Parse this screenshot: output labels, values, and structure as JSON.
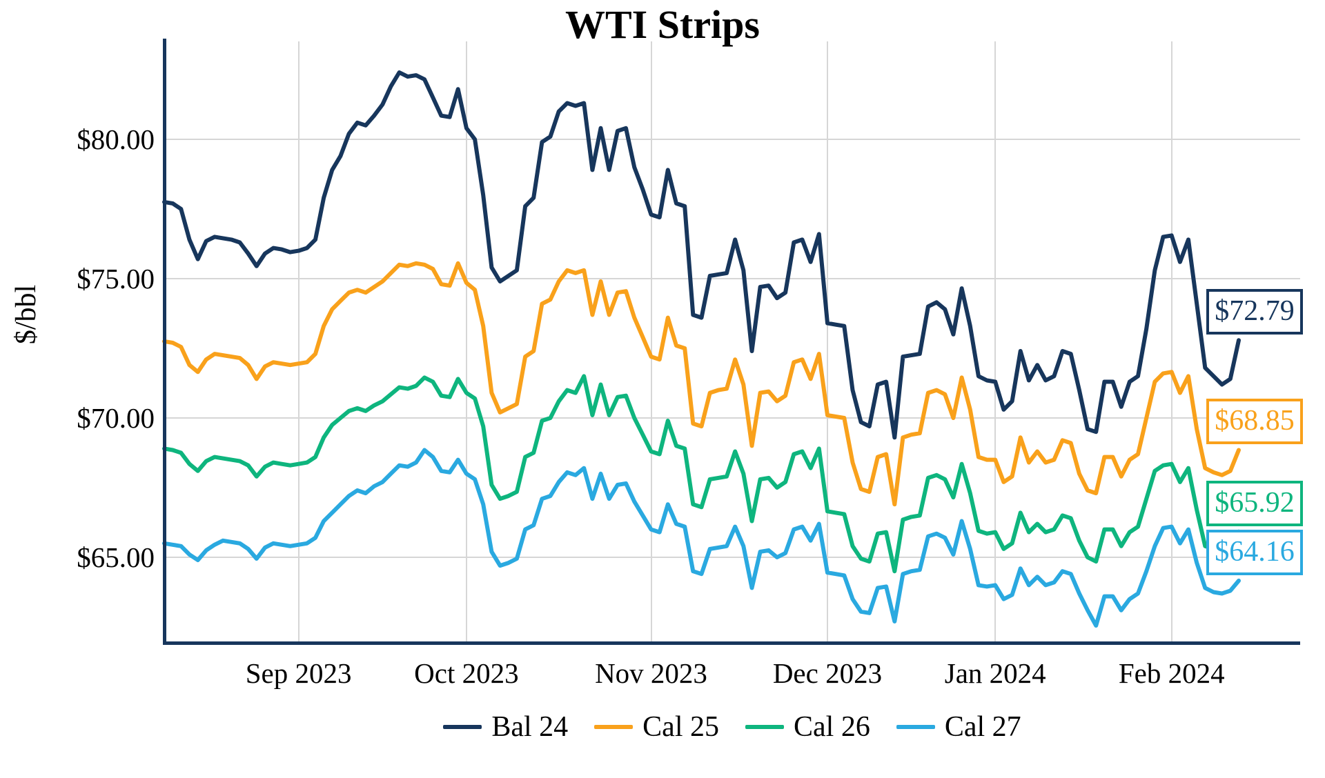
{
  "title": "WTI Strips",
  "y_axis": {
    "label": "$/bbl",
    "ticks": [
      {
        "label": "$80.00",
        "value": 80
      },
      {
        "label": "$75.00",
        "value": 75
      },
      {
        "label": "$70.00",
        "value": 70
      },
      {
        "label": "$65.00",
        "value": 65
      }
    ]
  },
  "x_axis": {
    "ticks": [
      {
        "label": "Sep 2023",
        "index": 16
      },
      {
        "label": "Oct 2023",
        "index": 36
      },
      {
        "label": "Nov 2023",
        "index": 58
      },
      {
        "label": "Dec 2023",
        "index": 79
      },
      {
        "label": "Jan 2024",
        "index": 99
      },
      {
        "label": "Feb 2024",
        "index": 120
      }
    ]
  },
  "chart_data": {
    "type": "line",
    "title": "WTI Strips",
    "xlabel": "",
    "ylabel": "$/bbl",
    "ylim": [
      61.9,
      83.5
    ],
    "x_range": "daily strip prices, Aug 10 2023 - Feb 13 2024",
    "grid": true,
    "legend_position": "bottom",
    "series": [
      {
        "name": "Bal 24",
        "color": "#17365c",
        "end_label": "$72.79",
        "end_value": 72.79,
        "values": [
          77.75,
          77.7,
          77.5,
          76.4,
          75.7,
          76.35,
          76.5,
          76.45,
          76.4,
          76.3,
          75.9,
          75.45,
          75.9,
          76.1,
          76.05,
          75.95,
          76.0,
          76.1,
          76.4,
          77.9,
          78.9,
          79.4,
          80.2,
          80.6,
          80.5,
          80.85,
          81.25,
          81.9,
          82.4,
          82.25,
          82.3,
          82.15,
          81.5,
          80.85,
          80.8,
          81.8,
          80.4,
          80.0,
          78.0,
          75.4,
          74.9,
          75.1,
          75.3,
          77.6,
          77.9,
          79.9,
          80.1,
          81.0,
          81.3,
          81.2,
          81.3,
          78.9,
          80.4,
          78.9,
          80.3,
          80.4,
          79.0,
          78.2,
          77.3,
          77.2,
          78.9,
          77.7,
          77.6,
          73.7,
          73.6,
          75.1,
          75.15,
          75.2,
          76.4,
          75.3,
          72.4,
          74.7,
          74.75,
          74.3,
          74.5,
          76.3,
          76.4,
          75.6,
          76.6,
          73.4,
          73.35,
          73.3,
          71.0,
          69.85,
          69.7,
          71.2,
          71.3,
          69.3,
          72.2,
          72.25,
          72.3,
          74.0,
          74.15,
          73.9,
          73.0,
          74.65,
          73.3,
          71.5,
          71.35,
          71.3,
          70.3,
          70.6,
          72.4,
          71.35,
          71.9,
          71.35,
          71.5,
          72.4,
          72.3,
          71.0,
          69.6,
          69.5,
          71.3,
          71.3,
          70.4,
          71.3,
          71.5,
          73.2,
          75.3,
          76.5,
          76.55,
          75.6,
          76.4,
          74.1,
          71.8,
          71.5,
          71.2,
          71.4,
          72.79
        ]
      },
      {
        "name": "Cal 25",
        "color": "#f9a11b",
        "end_label": "$68.85",
        "end_value": 68.85,
        "values": [
          72.75,
          72.7,
          72.55,
          71.9,
          71.65,
          72.1,
          72.3,
          72.25,
          72.2,
          72.15,
          71.9,
          71.4,
          71.85,
          72.0,
          71.95,
          71.9,
          71.95,
          72.0,
          72.3,
          73.3,
          73.9,
          74.2,
          74.5,
          74.6,
          74.5,
          74.7,
          74.9,
          75.2,
          75.5,
          75.45,
          75.55,
          75.5,
          75.35,
          74.8,
          74.75,
          75.55,
          74.85,
          74.6,
          73.3,
          70.9,
          70.2,
          70.35,
          70.5,
          72.2,
          72.4,
          74.1,
          74.25,
          74.9,
          75.3,
          75.2,
          75.3,
          73.7,
          74.9,
          73.7,
          74.5,
          74.55,
          73.6,
          72.9,
          72.2,
          72.1,
          73.6,
          72.6,
          72.5,
          69.8,
          69.7,
          70.9,
          71.0,
          71.05,
          72.1,
          71.2,
          69.0,
          70.9,
          70.95,
          70.6,
          70.8,
          72.0,
          72.1,
          71.4,
          72.3,
          70.1,
          70.05,
          70.0,
          68.4,
          67.45,
          67.35,
          68.6,
          68.7,
          66.9,
          69.3,
          69.4,
          69.45,
          70.9,
          71.0,
          70.85,
          70.0,
          71.45,
          70.3,
          68.6,
          68.5,
          68.5,
          67.7,
          67.9,
          69.3,
          68.4,
          68.8,
          68.4,
          68.5,
          69.2,
          69.1,
          68.0,
          67.4,
          67.3,
          68.6,
          68.6,
          67.9,
          68.5,
          68.7,
          70.0,
          71.3,
          71.6,
          71.65,
          70.9,
          71.5,
          69.6,
          68.2,
          68.05,
          67.95,
          68.1,
          68.85
        ]
      },
      {
        "name": "Cal 26",
        "color": "#0eb57e",
        "end_label": "$65.92",
        "end_value": 65.92,
        "values": [
          68.9,
          68.85,
          68.75,
          68.35,
          68.1,
          68.45,
          68.6,
          68.55,
          68.5,
          68.45,
          68.3,
          67.9,
          68.25,
          68.4,
          68.35,
          68.3,
          68.35,
          68.4,
          68.6,
          69.3,
          69.75,
          70.0,
          70.25,
          70.35,
          70.25,
          70.45,
          70.6,
          70.85,
          71.1,
          71.05,
          71.15,
          71.45,
          71.3,
          70.8,
          70.75,
          71.4,
          70.9,
          70.7,
          69.7,
          67.6,
          67.1,
          67.2,
          67.35,
          68.6,
          68.75,
          69.9,
          70.0,
          70.6,
          71.0,
          70.9,
          71.5,
          70.1,
          71.2,
          70.1,
          70.75,
          70.8,
          70.0,
          69.4,
          68.8,
          68.7,
          69.9,
          69.0,
          68.9,
          66.9,
          66.8,
          67.8,
          67.85,
          67.9,
          68.8,
          68.0,
          66.3,
          67.8,
          67.85,
          67.5,
          67.7,
          68.7,
          68.8,
          68.2,
          68.9,
          66.65,
          66.6,
          66.55,
          65.4,
          64.95,
          64.85,
          65.85,
          65.9,
          64.5,
          66.35,
          66.45,
          66.5,
          67.85,
          67.95,
          67.8,
          67.15,
          68.35,
          67.3,
          65.95,
          65.85,
          65.9,
          65.3,
          65.5,
          66.6,
          65.9,
          66.2,
          65.9,
          66.0,
          66.5,
          66.4,
          65.6,
          65.0,
          64.85,
          66.0,
          66.0,
          65.4,
          65.9,
          66.1,
          67.1,
          68.1,
          68.3,
          68.35,
          67.7,
          68.2,
          66.7,
          65.4,
          65.3,
          65.2,
          65.35,
          65.92
        ]
      },
      {
        "name": "Cal 27",
        "color": "#2aa9e0",
        "end_label": "$64.16",
        "end_value": 64.16,
        "values": [
          65.5,
          65.45,
          65.4,
          65.1,
          64.9,
          65.25,
          65.45,
          65.6,
          65.55,
          65.5,
          65.3,
          64.95,
          65.35,
          65.5,
          65.45,
          65.4,
          65.45,
          65.5,
          65.7,
          66.3,
          66.6,
          66.9,
          67.2,
          67.4,
          67.3,
          67.55,
          67.7,
          68.0,
          68.3,
          68.25,
          68.4,
          68.85,
          68.6,
          68.1,
          68.05,
          68.5,
          68.0,
          67.8,
          66.9,
          65.2,
          64.7,
          64.8,
          64.95,
          66.0,
          66.15,
          67.1,
          67.2,
          67.7,
          68.05,
          67.95,
          68.2,
          67.1,
          68.0,
          67.1,
          67.6,
          67.65,
          67.0,
          66.5,
          66.0,
          65.9,
          66.9,
          66.2,
          66.1,
          64.5,
          64.4,
          65.3,
          65.35,
          65.4,
          66.1,
          65.4,
          63.9,
          65.2,
          65.25,
          65.0,
          65.15,
          66.0,
          66.1,
          65.6,
          66.2,
          64.45,
          64.4,
          64.35,
          63.5,
          63.05,
          63.0,
          63.9,
          63.95,
          62.7,
          64.4,
          64.5,
          64.55,
          65.75,
          65.85,
          65.7,
          65.1,
          66.3,
          65.3,
          64.0,
          63.95,
          64.0,
          63.5,
          63.65,
          64.6,
          64.0,
          64.3,
          64.0,
          64.1,
          64.5,
          64.4,
          63.7,
          63.1,
          62.55,
          63.6,
          63.6,
          63.1,
          63.5,
          63.7,
          64.5,
          65.4,
          66.05,
          66.1,
          65.5,
          66.0,
          64.8,
          63.9,
          63.75,
          63.7,
          63.8,
          64.16
        ]
      }
    ]
  }
}
